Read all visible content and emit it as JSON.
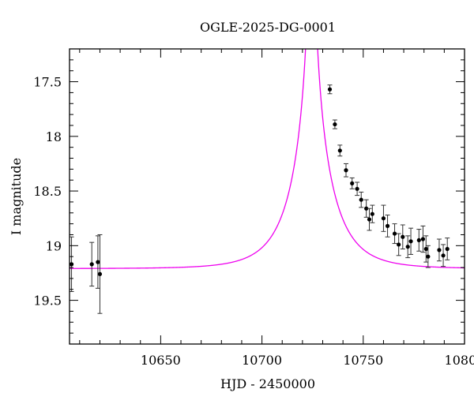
{
  "chart_data": {
    "type": "scatter",
    "title": "OGLE-2025-DG-0001",
    "xlabel": "HJD - 2450000",
    "ylabel": "I magnitude",
    "xlim": [
      10605,
      10800
    ],
    "ylim": [
      19.9,
      17.2
    ],
    "y_inverted": true,
    "grid": false,
    "xticks": [
      "10650",
      "10700",
      "10750",
      "10800"
    ],
    "yticks": [
      "17.5",
      "18",
      "18.5",
      "19",
      "19.5"
    ],
    "series": [
      {
        "kind": "points",
        "color": "#000000",
        "points": [
          {
            "x": 10606.0,
            "y": 19.17,
            "err": 0.25
          },
          {
            "x": 10616.0,
            "y": 19.17,
            "err": 0.2
          },
          {
            "x": 10619.0,
            "y": 19.15,
            "err": 0.24
          },
          {
            "x": 10620.0,
            "y": 19.26,
            "err": 0.36
          },
          {
            "x": 10733.5,
            "y": 17.57,
            "err": 0.04
          },
          {
            "x": 10736.0,
            "y": 17.89,
            "err": 0.04
          },
          {
            "x": 10738.5,
            "y": 18.13,
            "err": 0.05
          },
          {
            "x": 10741.5,
            "y": 18.31,
            "err": 0.06
          },
          {
            "x": 10744.5,
            "y": 18.43,
            "err": 0.05
          },
          {
            "x": 10747.0,
            "y": 18.48,
            "err": 0.06
          },
          {
            "x": 10749.0,
            "y": 18.58,
            "err": 0.07
          },
          {
            "x": 10751.5,
            "y": 18.66,
            "err": 0.08
          },
          {
            "x": 10753.0,
            "y": 18.76,
            "err": 0.1
          },
          {
            "x": 10754.5,
            "y": 18.71,
            "err": 0.08
          },
          {
            "x": 10760.0,
            "y": 18.75,
            "err": 0.12
          },
          {
            "x": 10762.0,
            "y": 18.82,
            "err": 0.1
          },
          {
            "x": 10765.5,
            "y": 18.89,
            "err": 0.09
          },
          {
            "x": 10767.5,
            "y": 18.99,
            "err": 0.1
          },
          {
            "x": 10769.5,
            "y": 18.92,
            "err": 0.11
          },
          {
            "x": 10772.0,
            "y": 19.01,
            "err": 0.1
          },
          {
            "x": 10773.5,
            "y": 18.96,
            "err": 0.12
          },
          {
            "x": 10777.5,
            "y": 18.95,
            "err": 0.1
          },
          {
            "x": 10779.5,
            "y": 18.94,
            "err": 0.12
          },
          {
            "x": 10781.0,
            "y": 19.03,
            "err": 0.12
          },
          {
            "x": 10782.0,
            "y": 19.1,
            "err": 0.1
          },
          {
            "x": 10787.5,
            "y": 19.04,
            "err": 0.1
          },
          {
            "x": 10789.5,
            "y": 19.09,
            "err": 0.1
          },
          {
            "x": 10791.5,
            "y": 19.03,
            "err": 0.1
          }
        ]
      },
      {
        "kind": "model-curve",
        "color": "#ee00ee",
        "model": {
          "t0": 10724.5,
          "u0": 0.02,
          "tE": 19,
          "baseline_mag": 19.21
        }
      }
    ]
  }
}
